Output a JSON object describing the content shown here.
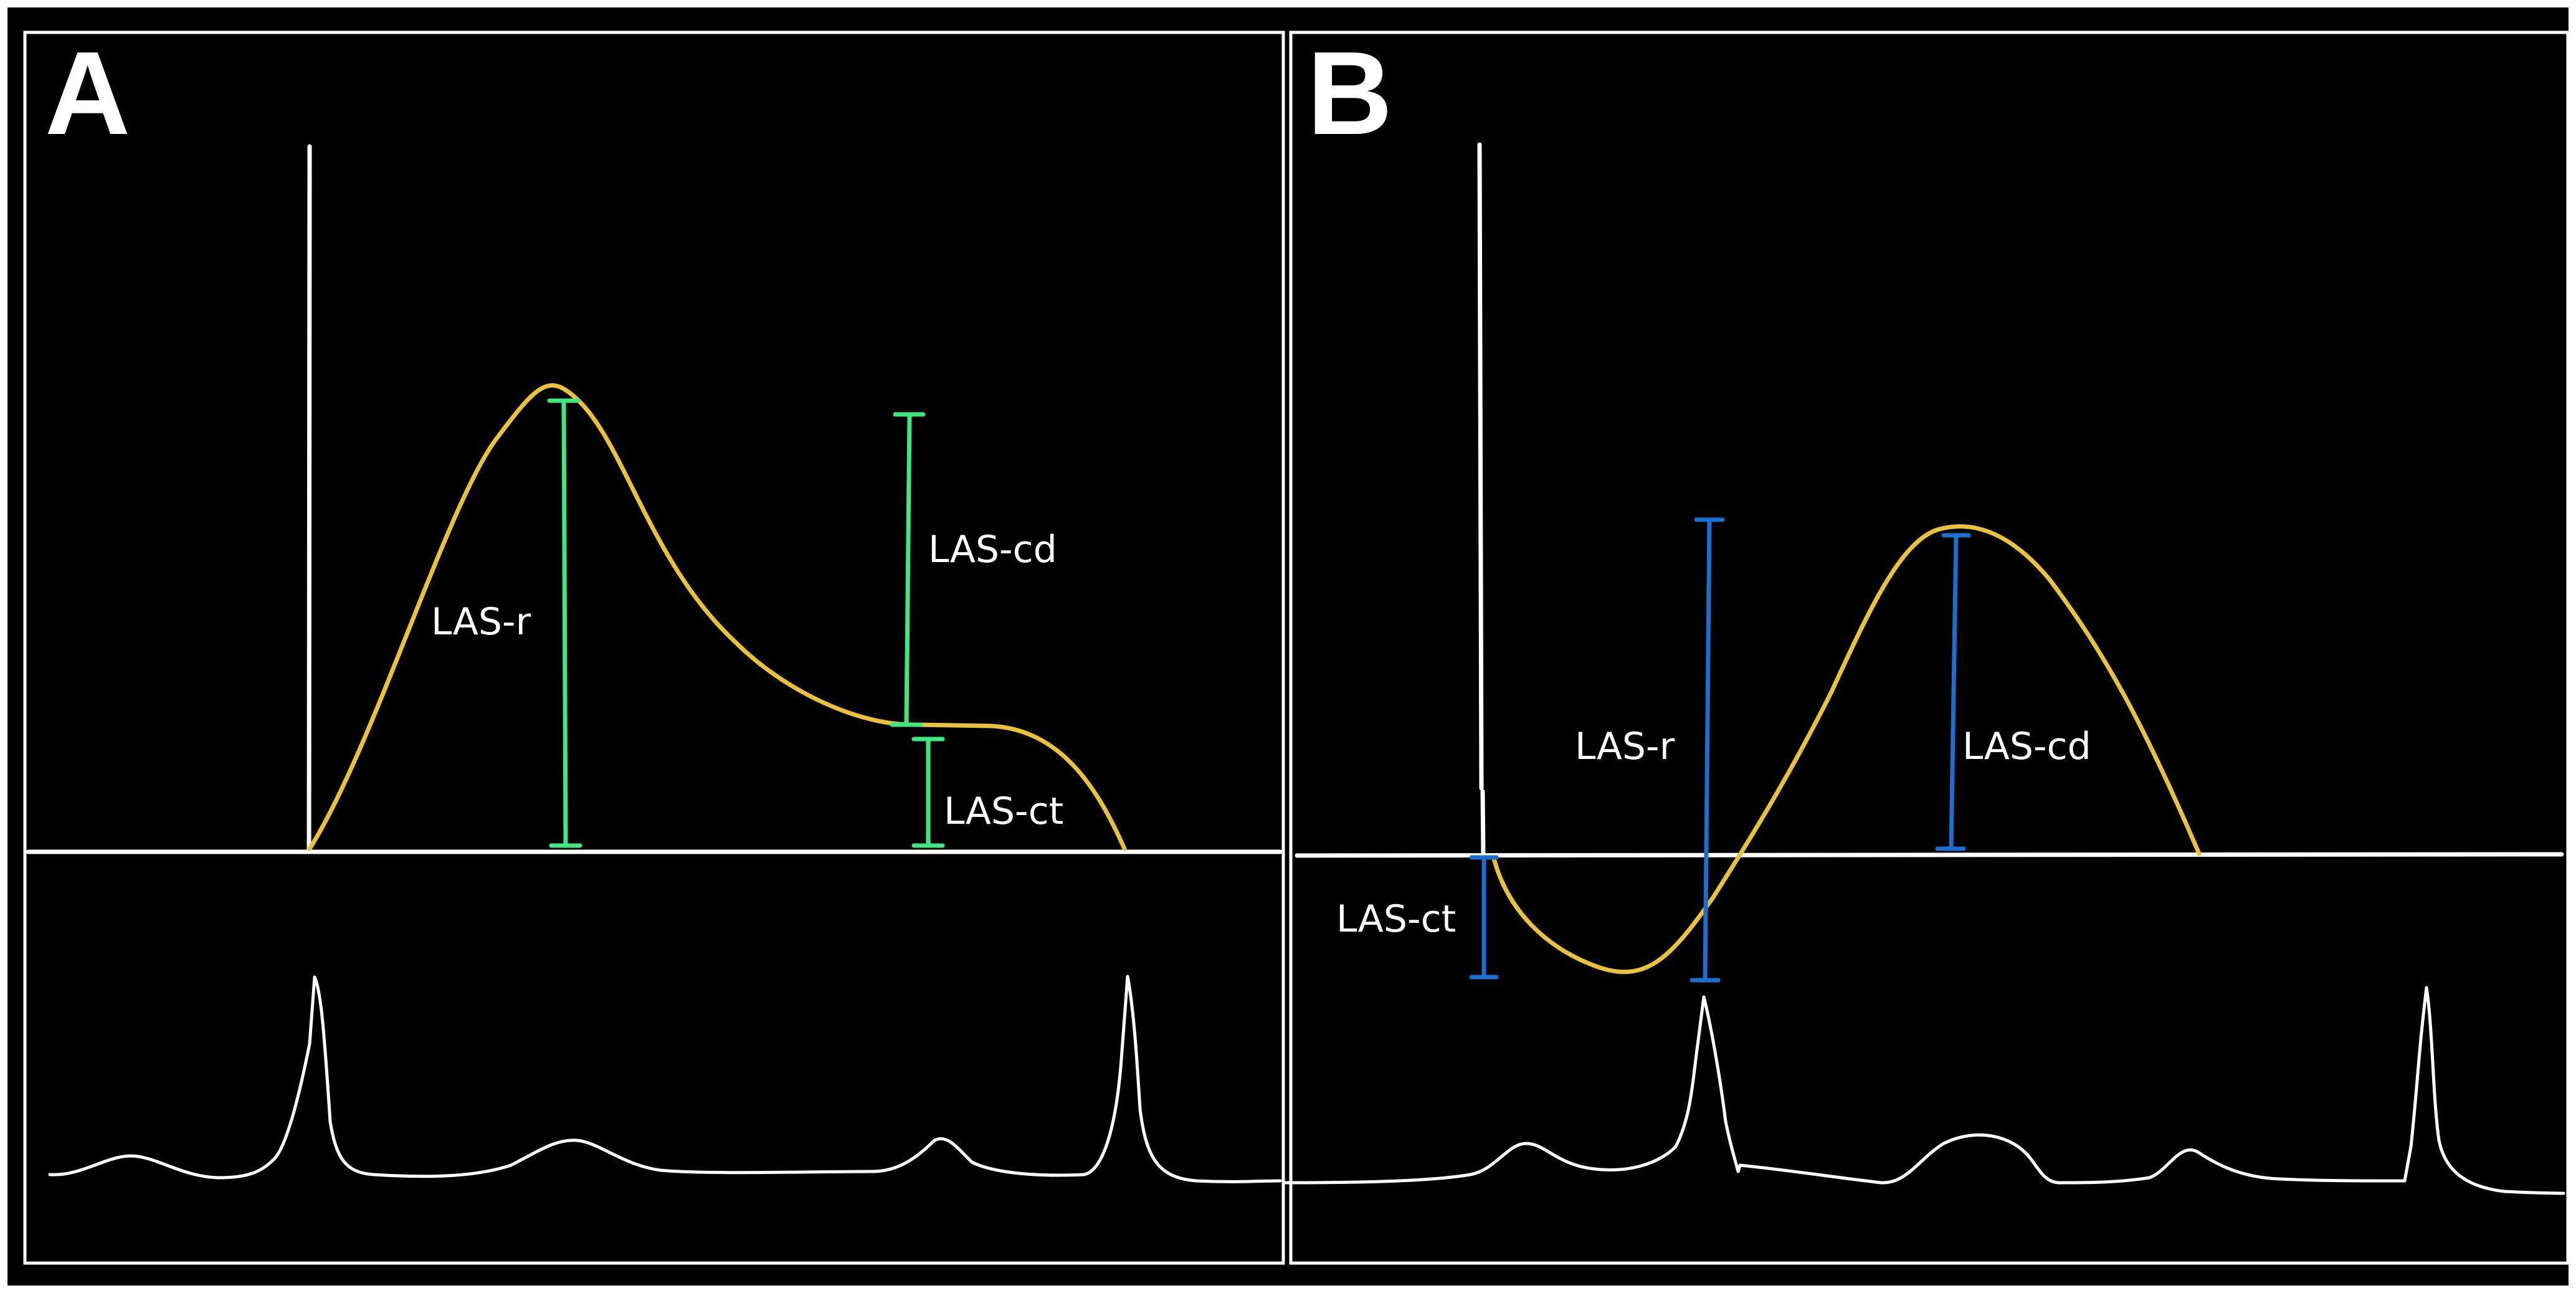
{
  "colors": {
    "background": "#000000",
    "frame": "#ffffff",
    "axis": "#ffffff",
    "strain_curve": "#e9c13b",
    "ecg": "#ffffff",
    "panel_a_measure": "#3ee87e",
    "panel_b_measure": "#1a6fd0",
    "text": "#ffffff"
  },
  "panels": [
    {
      "letter": "A",
      "labels": {
        "reservoir": "LAS-r",
        "conduit": "LAS-cd",
        "contraction": "LAS-ct"
      }
    },
    {
      "letter": "B",
      "labels": {
        "reservoir": "LAS-r",
        "conduit": "LAS-cd",
        "contraction": "LAS-ct"
      }
    }
  ]
}
